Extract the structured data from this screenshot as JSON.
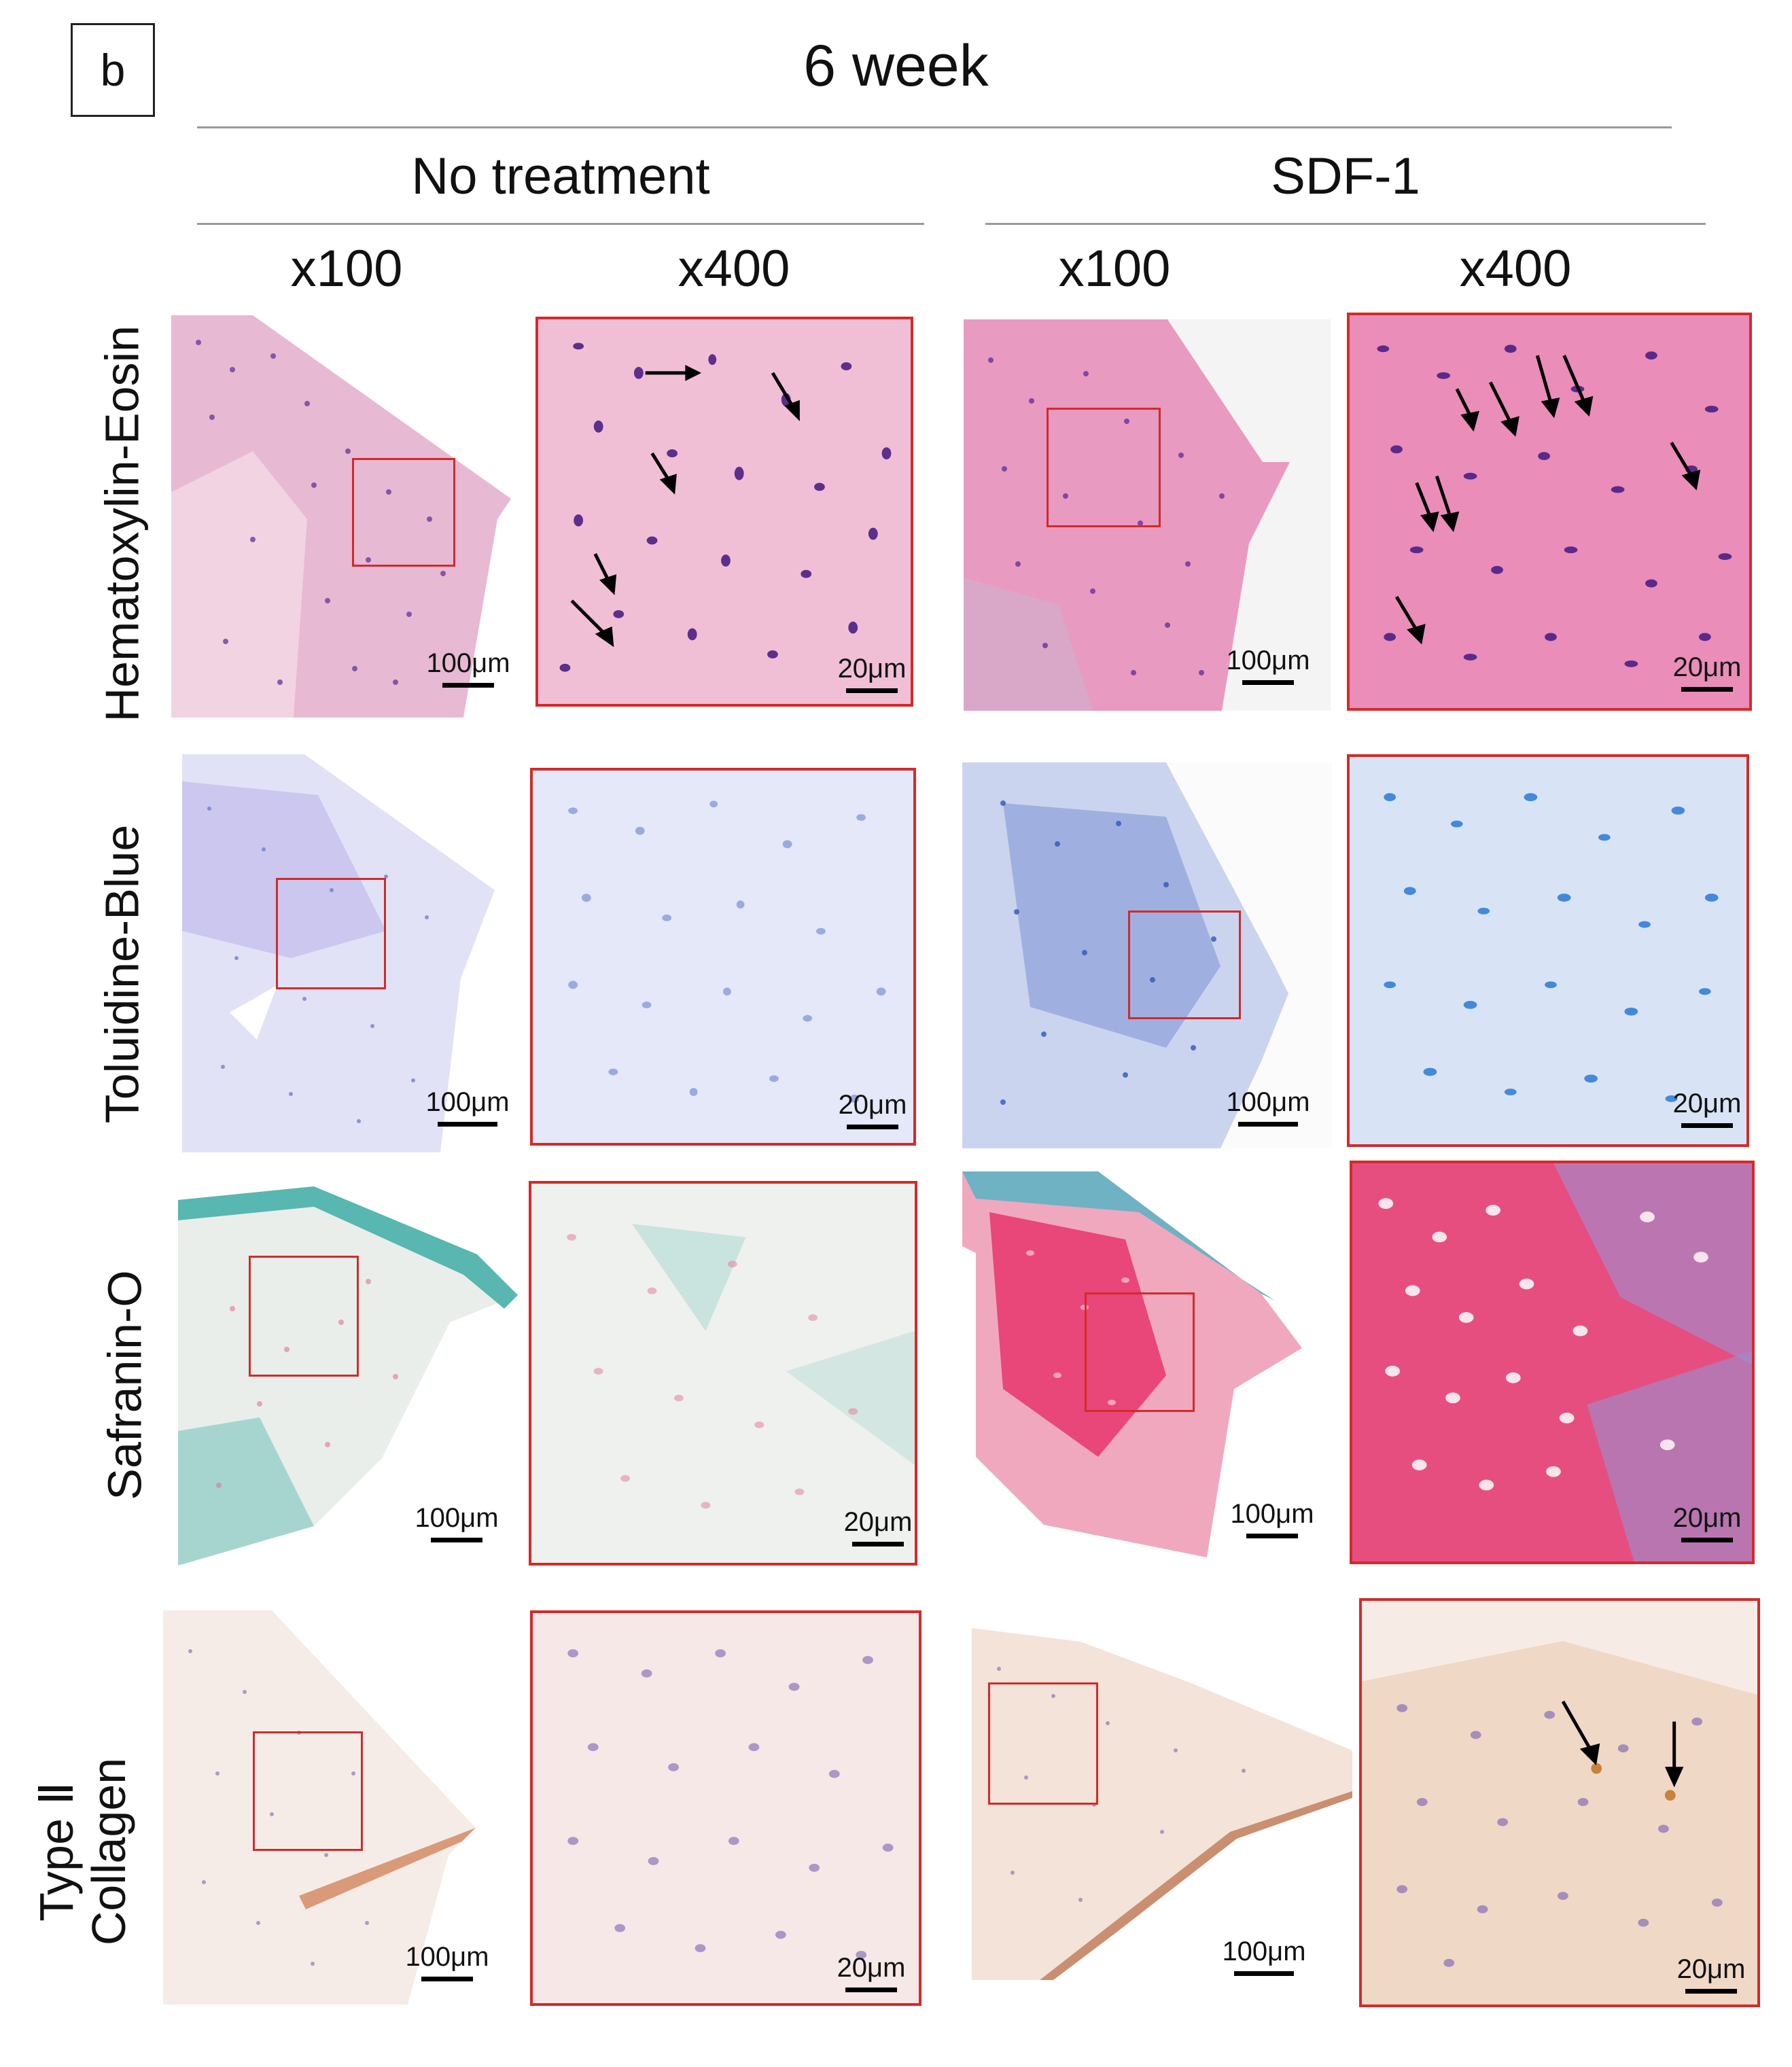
{
  "panel_label": "b",
  "timepoint": "6 week",
  "groups": [
    "No treatment",
    "SDF-1"
  ],
  "magnifications": [
    "x100",
    "x400"
  ],
  "rows": [
    {
      "stain": "Hematoxylin-Eosin",
      "colors": {
        "bg": "#e9b7cf",
        "cell": "#6a3c9a",
        "bg2": "#f0c6d8"
      }
    },
    {
      "stain": "Toluidine-Blue",
      "colors": {
        "bg": "#dfe4f6",
        "cell": "#5b78c8",
        "bg2": "#e8ecf8"
      }
    },
    {
      "stain": "Safranin-O",
      "colors": {
        "bg": "#e8efe9",
        "cell": "#e06a8a",
        "bg2": "#bfe1dc"
      }
    },
    {
      "stain": "Type Ⅱ",
      "stain_line2": "Collagen",
      "colors": {
        "bg": "#f4e9e4",
        "cell": "#9a88b8",
        "bg2": "#e9cdb8"
      }
    }
  ],
  "scale_bars": {
    "low": "100μm",
    "high": "20μm"
  },
  "sdf_colors": {
    "he": {
      "bg": "#ec8fb5",
      "cell": "#7a3aa0"
    },
    "tb": {
      "bg": "#c9d6f2",
      "cell": "#2f6fce"
    },
    "so": {
      "bg": "#ea6c92",
      "cell": "#f8e7ee"
    },
    "col": {
      "bg": "#f1dccd",
      "cell": "#9a80b8"
    }
  }
}
